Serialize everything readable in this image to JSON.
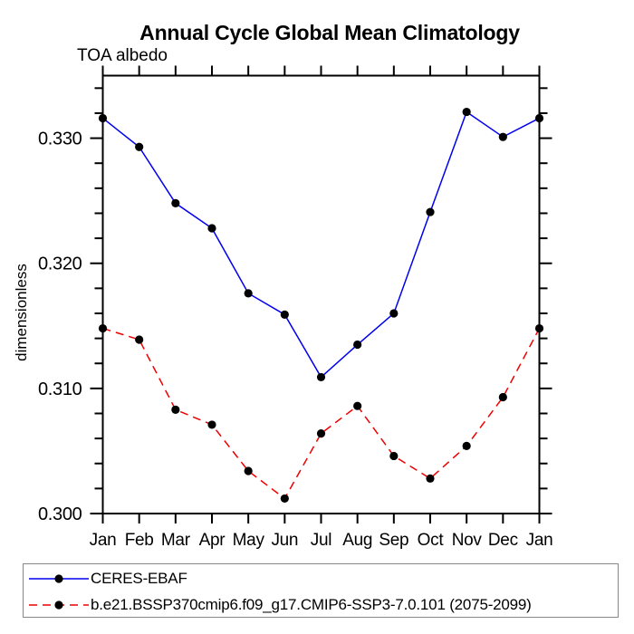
{
  "chart_data": {
    "type": "line",
    "title": "Annual Cycle Global Mean Climatology",
    "subtitle": "TOA albedo",
    "ylabel": "dimensionless",
    "x_categories": [
      "Jan",
      "Feb",
      "Mar",
      "Apr",
      "May",
      "Jun",
      "Jul",
      "Aug",
      "Sep",
      "Oct",
      "Nov",
      "Dec",
      "Jan"
    ],
    "ylim": [
      0.3,
      0.335
    ],
    "y_major_ticks": [
      0.3,
      0.31,
      0.32,
      0.33
    ],
    "y_major_tick_labels": [
      "0.300",
      "0.310",
      "0.320",
      "0.330"
    ],
    "y_minor_step": 0.002,
    "grid": false,
    "legend_position": "bottom-left",
    "series": [
      {
        "name": "CERES-EBAF",
        "color": "#0000ee",
        "line_style": "solid",
        "marker": "filled-circle",
        "marker_color": "#000000",
        "values": [
          0.3316,
          0.3293,
          0.3248,
          0.3228,
          0.3176,
          0.3159,
          0.3109,
          0.3135,
          0.316,
          0.3241,
          0.3321,
          0.3301,
          0.3316
        ]
      },
      {
        "name": "b.e21.BSSP370cmip6.f09_g17.CMIP6-SSP3-7.0.101 (2075-2099)",
        "color": "#ee0000",
        "line_style": "dashed",
        "marker": "filled-circle",
        "marker_color": "#000000",
        "values": [
          0.3148,
          0.3139,
          0.3083,
          0.3071,
          0.3034,
          0.3012,
          0.3064,
          0.3086,
          0.3046,
          0.3028,
          0.3054,
          0.3093,
          0.3148
        ]
      }
    ],
    "axis_color": "#000000",
    "background_color": "#ffffff"
  }
}
